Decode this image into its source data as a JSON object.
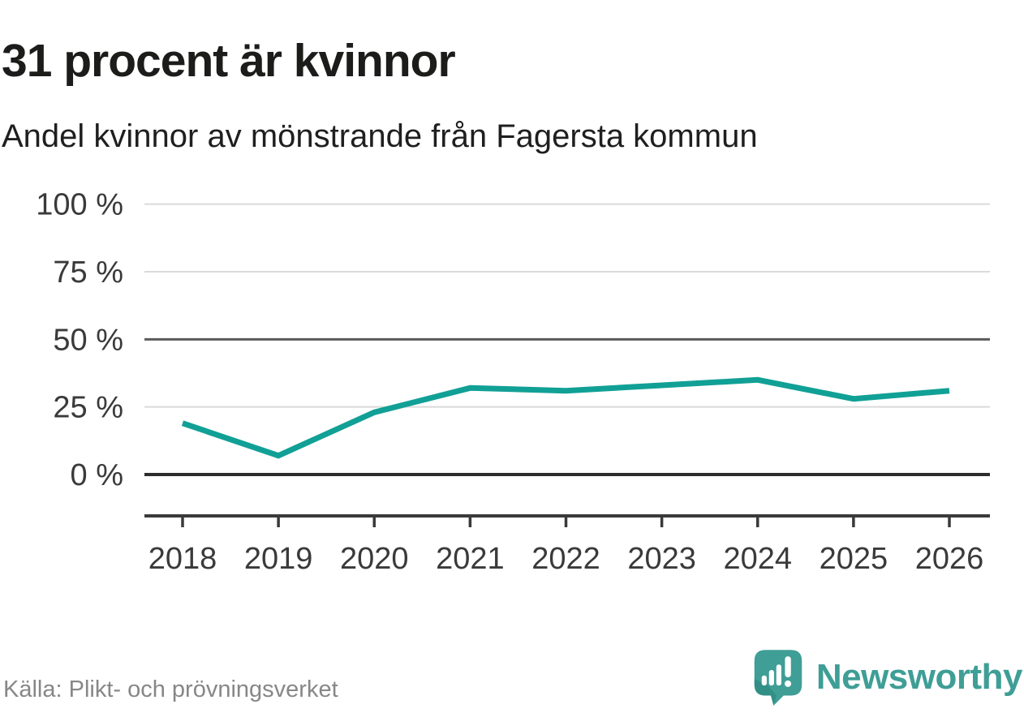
{
  "header": {
    "title": "31 procent är kvinnor",
    "subtitle": "Andel kvinnor av mönstrande från Fagersta kommun"
  },
  "footer": {
    "source": "Källa: Plikt- och prövningsverket",
    "brand": "Newsworthy"
  },
  "colors": {
    "line": "#11a096",
    "brand_teal": "#3f9e96",
    "brand_teal_dark": "#2f8c82",
    "grid_light": "#dadada",
    "grid_mid": "#5a5a5a",
    "grid_zero": "#2d2d2d",
    "axis": "#3a3a3a",
    "title_text": "#1c1c1a",
    "tick_text": "#3a3a3a",
    "source_text": "#878787"
  },
  "chart_data": {
    "type": "line",
    "title": "31 procent är kvinnor",
    "subtitle": "Andel kvinnor av mönstrande från Fagersta kommun",
    "x": [
      2018,
      2019,
      2020,
      2021,
      2022,
      2023,
      2024,
      2025,
      2026
    ],
    "series": [
      {
        "name": "Andel kvinnor av mönstrande (%)",
        "values": [
          19,
          7,
          23,
          32,
          31,
          33,
          35,
          28,
          31
        ],
        "color": "#11a096"
      }
    ],
    "xlabel": "",
    "ylabel": "",
    "ylim": [
      0,
      100
    ],
    "yticks": [
      {
        "value": 100,
        "label": "100 %"
      },
      {
        "value": 75,
        "label": "75 %"
      },
      {
        "value": 50,
        "label": "50 %"
      },
      {
        "value": 25,
        "label": "25 %"
      },
      {
        "value": 0,
        "label": "0 %"
      }
    ],
    "grid": "horizontal",
    "legend": false,
    "latest_value_label": "31"
  }
}
